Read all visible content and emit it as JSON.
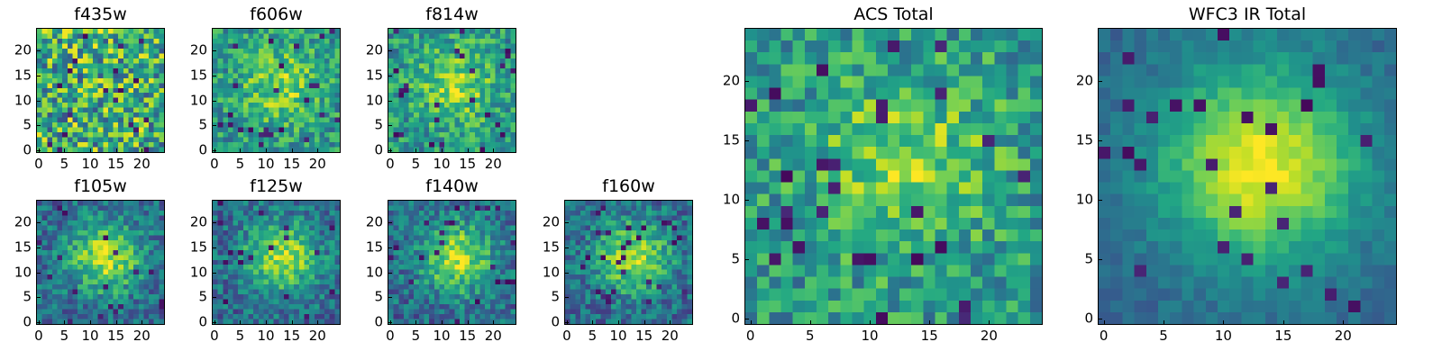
{
  "figure": {
    "colormap": "viridis",
    "grid_size": 25,
    "panels": [
      {
        "id": "f435w",
        "title": "f435w",
        "x_ticks": [
          "0",
          "5",
          "10",
          "15",
          "20"
        ],
        "y_ticks": [
          "0",
          "5",
          "10",
          "15",
          "20"
        ],
        "structure": "noise"
      },
      {
        "id": "f606w",
        "title": "f606w",
        "x_ticks": [
          "0",
          "5",
          "10",
          "15",
          "20"
        ],
        "y_ticks": [
          "0",
          "5",
          "10",
          "15",
          "20"
        ],
        "structure": "weak-center"
      },
      {
        "id": "f814w",
        "title": "f814w",
        "x_ticks": [
          "0",
          "5",
          "10",
          "15",
          "20"
        ],
        "y_ticks": [
          "0",
          "5",
          "10",
          "15",
          "20"
        ],
        "structure": "weak-center"
      },
      {
        "id": "f105w",
        "title": "f105w",
        "x_ticks": [
          "0",
          "5",
          "10",
          "15",
          "20"
        ],
        "y_ticks": [
          "0",
          "5",
          "10",
          "15",
          "20"
        ],
        "structure": "source"
      },
      {
        "id": "f125w",
        "title": "f125w",
        "x_ticks": [
          "0",
          "5",
          "10",
          "15",
          "20"
        ],
        "y_ticks": [
          "0",
          "5",
          "10",
          "15",
          "20"
        ],
        "structure": "source"
      },
      {
        "id": "f140w",
        "title": "f140w",
        "x_ticks": [
          "0",
          "5",
          "10",
          "15",
          "20"
        ],
        "y_ticks": [
          "0",
          "5",
          "10",
          "15",
          "20"
        ],
        "structure": "source"
      },
      {
        "id": "f160w",
        "title": "f160w",
        "x_ticks": [
          "0",
          "5",
          "10",
          "15",
          "20"
        ],
        "y_ticks": [
          "0",
          "5",
          "10",
          "15",
          "20"
        ],
        "structure": "source"
      },
      {
        "id": "acs-total",
        "title": "ACS Total",
        "x_ticks": [
          "0",
          "5",
          "10",
          "15",
          "20"
        ],
        "y_ticks": [
          "0",
          "5",
          "10",
          "15",
          "20"
        ],
        "structure": "weak-center"
      },
      {
        "id": "wfc3-ir-total",
        "title": "WFC3 IR Total",
        "x_ticks": [
          "0",
          "5",
          "10",
          "15",
          "20"
        ],
        "y_ticks": [
          "0",
          "5",
          "10",
          "15",
          "20"
        ],
        "structure": "smooth-source"
      }
    ]
  }
}
